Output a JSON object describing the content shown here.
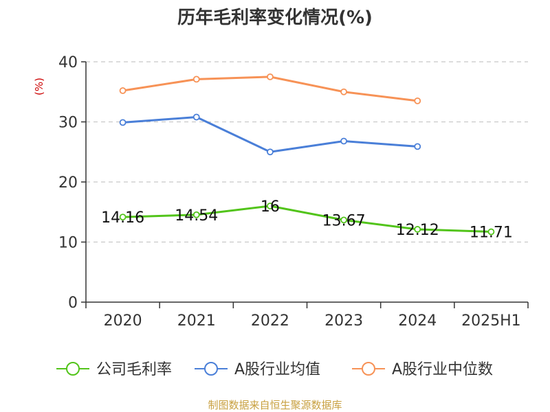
{
  "chart_data": {
    "type": "line",
    "title": "历年毛利率变化情况(%)",
    "ylabel": "(%)",
    "xlabel": "",
    "categories": [
      "2020",
      "2021",
      "2022",
      "2023",
      "2024",
      "2025H1"
    ],
    "ylim": [
      0,
      40
    ],
    "yticks": [
      0,
      10,
      20,
      30,
      40
    ],
    "grid": true,
    "legend_position": "bottom",
    "series": [
      {
        "name": "公司毛利率",
        "color": "#52c41a",
        "values": [
          14.16,
          14.54,
          16,
          13.67,
          12.12,
          11.71
        ],
        "data_labels": [
          "14.16",
          "14.54",
          "16",
          "13.67",
          "12.12",
          "11.71"
        ]
      },
      {
        "name": "A股行业均值",
        "color": "#4a7fd8",
        "values": [
          29.9,
          30.8,
          25.0,
          26.8,
          25.9,
          null
        ]
      },
      {
        "name": "A股行业中位数",
        "color": "#f79256",
        "values": [
          35.2,
          37.1,
          37.5,
          35.0,
          33.5,
          null
        ]
      }
    ]
  },
  "colors": {
    "title": "#333333",
    "axis": "#333333",
    "grid": "#c8c8c8",
    "unit_label": "#cc0000",
    "source": "#c8a040"
  },
  "source": "制图数据来自恒生聚源数据库"
}
